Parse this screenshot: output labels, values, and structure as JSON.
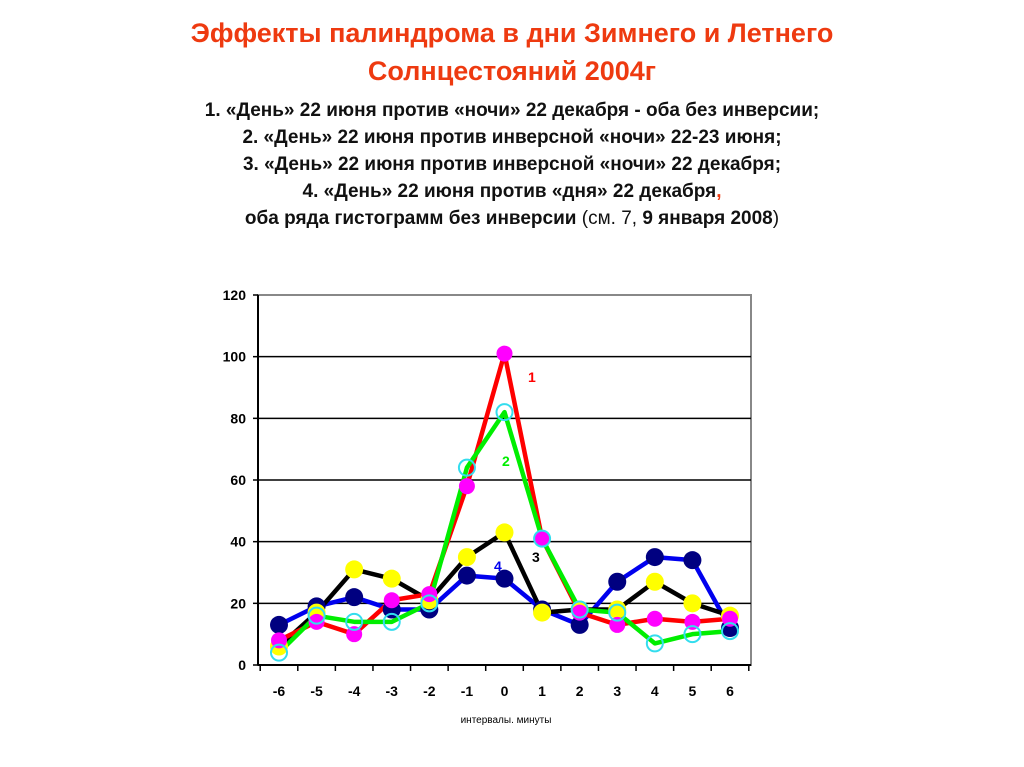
{
  "header": {
    "title_line1": "Эффекты палиндрома в дни Зимнего и Летнего",
    "title_line2": "Солнцестояний 2004г",
    "lines": [
      "1. «День» 22 июня против «ночи» 22 декабря - оба без инверсии;",
      "2. «День» 22 июня против инверсной «ночи» 22-23 июня;",
      "3. «День» 22 июня против  инверсной «ночи» 22 декабря;",
      "4. «День» 22 июня против «дня» 22 декабря"
    ],
    "line4_comma": ",",
    "line5_bold": "оба ряда гистограмм без инверсии",
    "line5_open": " (см. 7, ",
    "line5_bold2": "9 января 2008",
    "line5_close": ")"
  },
  "colors": {
    "title": "#ee3a10",
    "series1_line": "#ff0000",
    "series1_marker": "#ff00ff",
    "series2_line": "#00ee00",
    "series2_marker": "#33ddee",
    "series3_line": "#000000",
    "series3_marker": "#ffff00",
    "series4_line": "#0000ee",
    "series4_marker": "#000080"
  },
  "chart_data": {
    "type": "line",
    "title": "",
    "xlabel": "интервалы. минуты",
    "ylabel": "",
    "categories": [
      "-6",
      "-5",
      "-4",
      "-3",
      "-2",
      "-1",
      "0",
      "1",
      "2",
      "3",
      "4",
      "5",
      "6"
    ],
    "ylim": [
      0,
      120
    ],
    "yticks": [
      0,
      20,
      40,
      60,
      80,
      100,
      120
    ],
    "grid": true,
    "legend": "inline labels 1-4 near peak",
    "series": [
      {
        "name": "1",
        "values": [
          8,
          14,
          10,
          21,
          23,
          58,
          101,
          41,
          17,
          13,
          15,
          14,
          15
        ]
      },
      {
        "name": "2",
        "values": [
          4,
          16,
          14,
          14,
          20,
          64,
          82,
          41,
          18,
          17,
          7,
          10,
          11
        ]
      },
      {
        "name": "3",
        "values": [
          6,
          17,
          31,
          28,
          21,
          35,
          43,
          17,
          18,
          18,
          27,
          20,
          16
        ]
      },
      {
        "name": "4",
        "values": [
          13,
          19,
          22,
          18,
          18,
          29,
          28,
          18,
          13,
          27,
          35,
          34,
          12
        ]
      }
    ],
    "annotations": [
      {
        "text": "1",
        "x": "0",
        "y": 93,
        "color": "#ff0000"
      },
      {
        "text": "2",
        "x": "-1",
        "y": 66,
        "color": "#00ee00"
      },
      {
        "text": "3",
        "x": "1",
        "y": 34,
        "color": "#000000"
      },
      {
        "text": "4",
        "x": "0",
        "y": 31,
        "color": "#0000ee"
      }
    ]
  }
}
